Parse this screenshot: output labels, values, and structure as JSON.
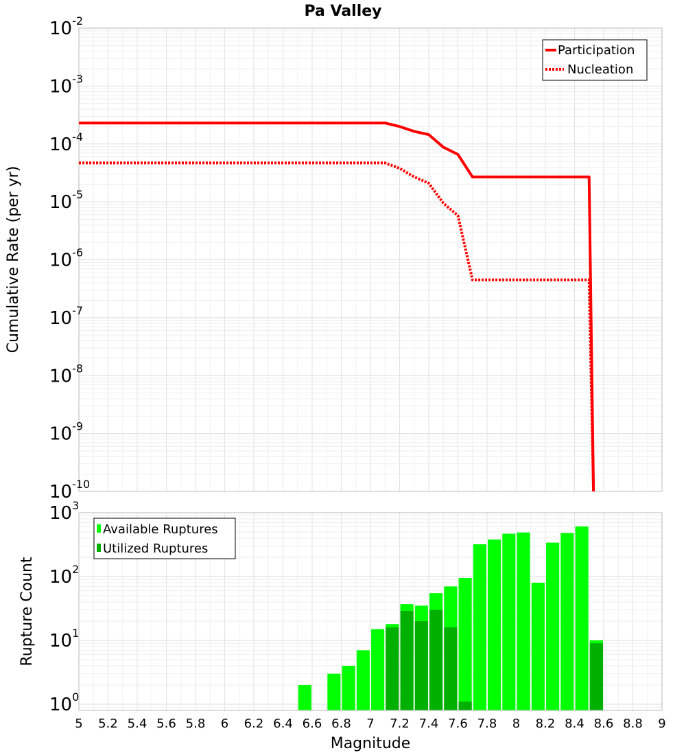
{
  "chart_data": [
    {
      "type": "line",
      "title": "Pa Valley",
      "xlabel": "",
      "ylabel": "Cumulative Rate (per yr)",
      "xlim": [
        5,
        9
      ],
      "ylim": [
        1e-10,
        0.01
      ],
      "yscale": "log",
      "grid": true,
      "legend_position": "top-right",
      "y_ticks": [
        {
          "base": "10",
          "exp": "-2",
          "value": 0.01
        },
        {
          "base": "10",
          "exp": "-3",
          "value": 0.001
        },
        {
          "base": "10",
          "exp": "-4",
          "value": 0.0001
        },
        {
          "base": "10",
          "exp": "-5",
          "value": 1e-05
        },
        {
          "base": "10",
          "exp": "-6",
          "value": 1e-06
        },
        {
          "base": "10",
          "exp": "-7",
          "value": 1e-07
        },
        {
          "base": "10",
          "exp": "-8",
          "value": 1e-08
        },
        {
          "base": "10",
          "exp": "-9",
          "value": 1e-09
        },
        {
          "base": "10",
          "exp": "-10",
          "value": 1e-10
        }
      ],
      "series": [
        {
          "name": "Participation",
          "color": "#ff0000",
          "style": "solid",
          "points": [
            [
              5.0,
              0.00023
            ],
            [
              7.1,
              0.00023
            ],
            [
              7.2,
              0.0002
            ],
            [
              7.3,
              0.000165
            ],
            [
              7.4,
              0.000145
            ],
            [
              7.5,
              8.8e-05
            ],
            [
              7.6,
              6.6e-05
            ],
            [
              7.7,
              2.7e-05
            ],
            [
              8.5,
              2.7e-05
            ],
            [
              8.53,
              1e-10
            ]
          ]
        },
        {
          "name": "Nucleation",
          "color": "#ff0000",
          "style": "dotted",
          "points": [
            [
              5.0,
              4.7e-05
            ],
            [
              7.1,
              4.7e-05
            ],
            [
              7.2,
              3.8e-05
            ],
            [
              7.3,
              2.7e-05
            ],
            [
              7.4,
              2.1e-05
            ],
            [
              7.5,
              9.5e-06
            ],
            [
              7.6,
              5.8e-06
            ],
            [
              7.7,
              4.5e-07
            ],
            [
              8.5,
              4.5e-07
            ],
            [
              8.53,
              1e-10
            ]
          ]
        }
      ]
    },
    {
      "type": "bar",
      "title": "",
      "xlabel": "Magnitude",
      "ylabel": "Rupture Count",
      "xlim": [
        5,
        9
      ],
      "ylim": [
        0.8,
        1000
      ],
      "yscale": "log",
      "grid": true,
      "legend_position": "top-left",
      "bar_width": 0.09,
      "x_ticks": [
        "5",
        "5.2",
        "5.4",
        "5.6",
        "5.8",
        "6",
        "6.2",
        "6.4",
        "6.6",
        "6.8",
        "7",
        "7.2",
        "7.4",
        "7.6",
        "7.8",
        "8",
        "8.2",
        "8.4",
        "8.6",
        "8.8",
        "9"
      ],
      "y_ticks": [
        {
          "base": "10",
          "exp": "3",
          "value": 1000
        },
        {
          "base": "10",
          "exp": "2",
          "value": 100
        },
        {
          "base": "10",
          "exp": "1",
          "value": 10
        },
        {
          "base": "10",
          "exp": "0",
          "value": 1
        }
      ],
      "series": [
        {
          "name": "Available Ruptures",
          "color": "#00ff00",
          "x": [
            6.55,
            6.75,
            6.85,
            6.95,
            7.05,
            7.15,
            7.25,
            7.35,
            7.45,
            7.55,
            7.65,
            7.75,
            7.85,
            7.95,
            8.05,
            8.15,
            8.25,
            8.35,
            8.45,
            8.55
          ],
          "values": [
            2,
            3,
            4,
            7,
            15,
            18,
            37,
            35,
            55,
            70,
            95,
            320,
            380,
            470,
            490,
            80,
            340,
            480,
            610,
            10
          ]
        },
        {
          "name": "Utilized Ruptures",
          "color": "#00b000",
          "x": [
            7.15,
            7.25,
            7.35,
            7.45,
            7.55,
            7.65,
            8.55
          ],
          "values": [
            16,
            29,
            20,
            30,
            16,
            1.1,
            9
          ]
        }
      ]
    }
  ]
}
